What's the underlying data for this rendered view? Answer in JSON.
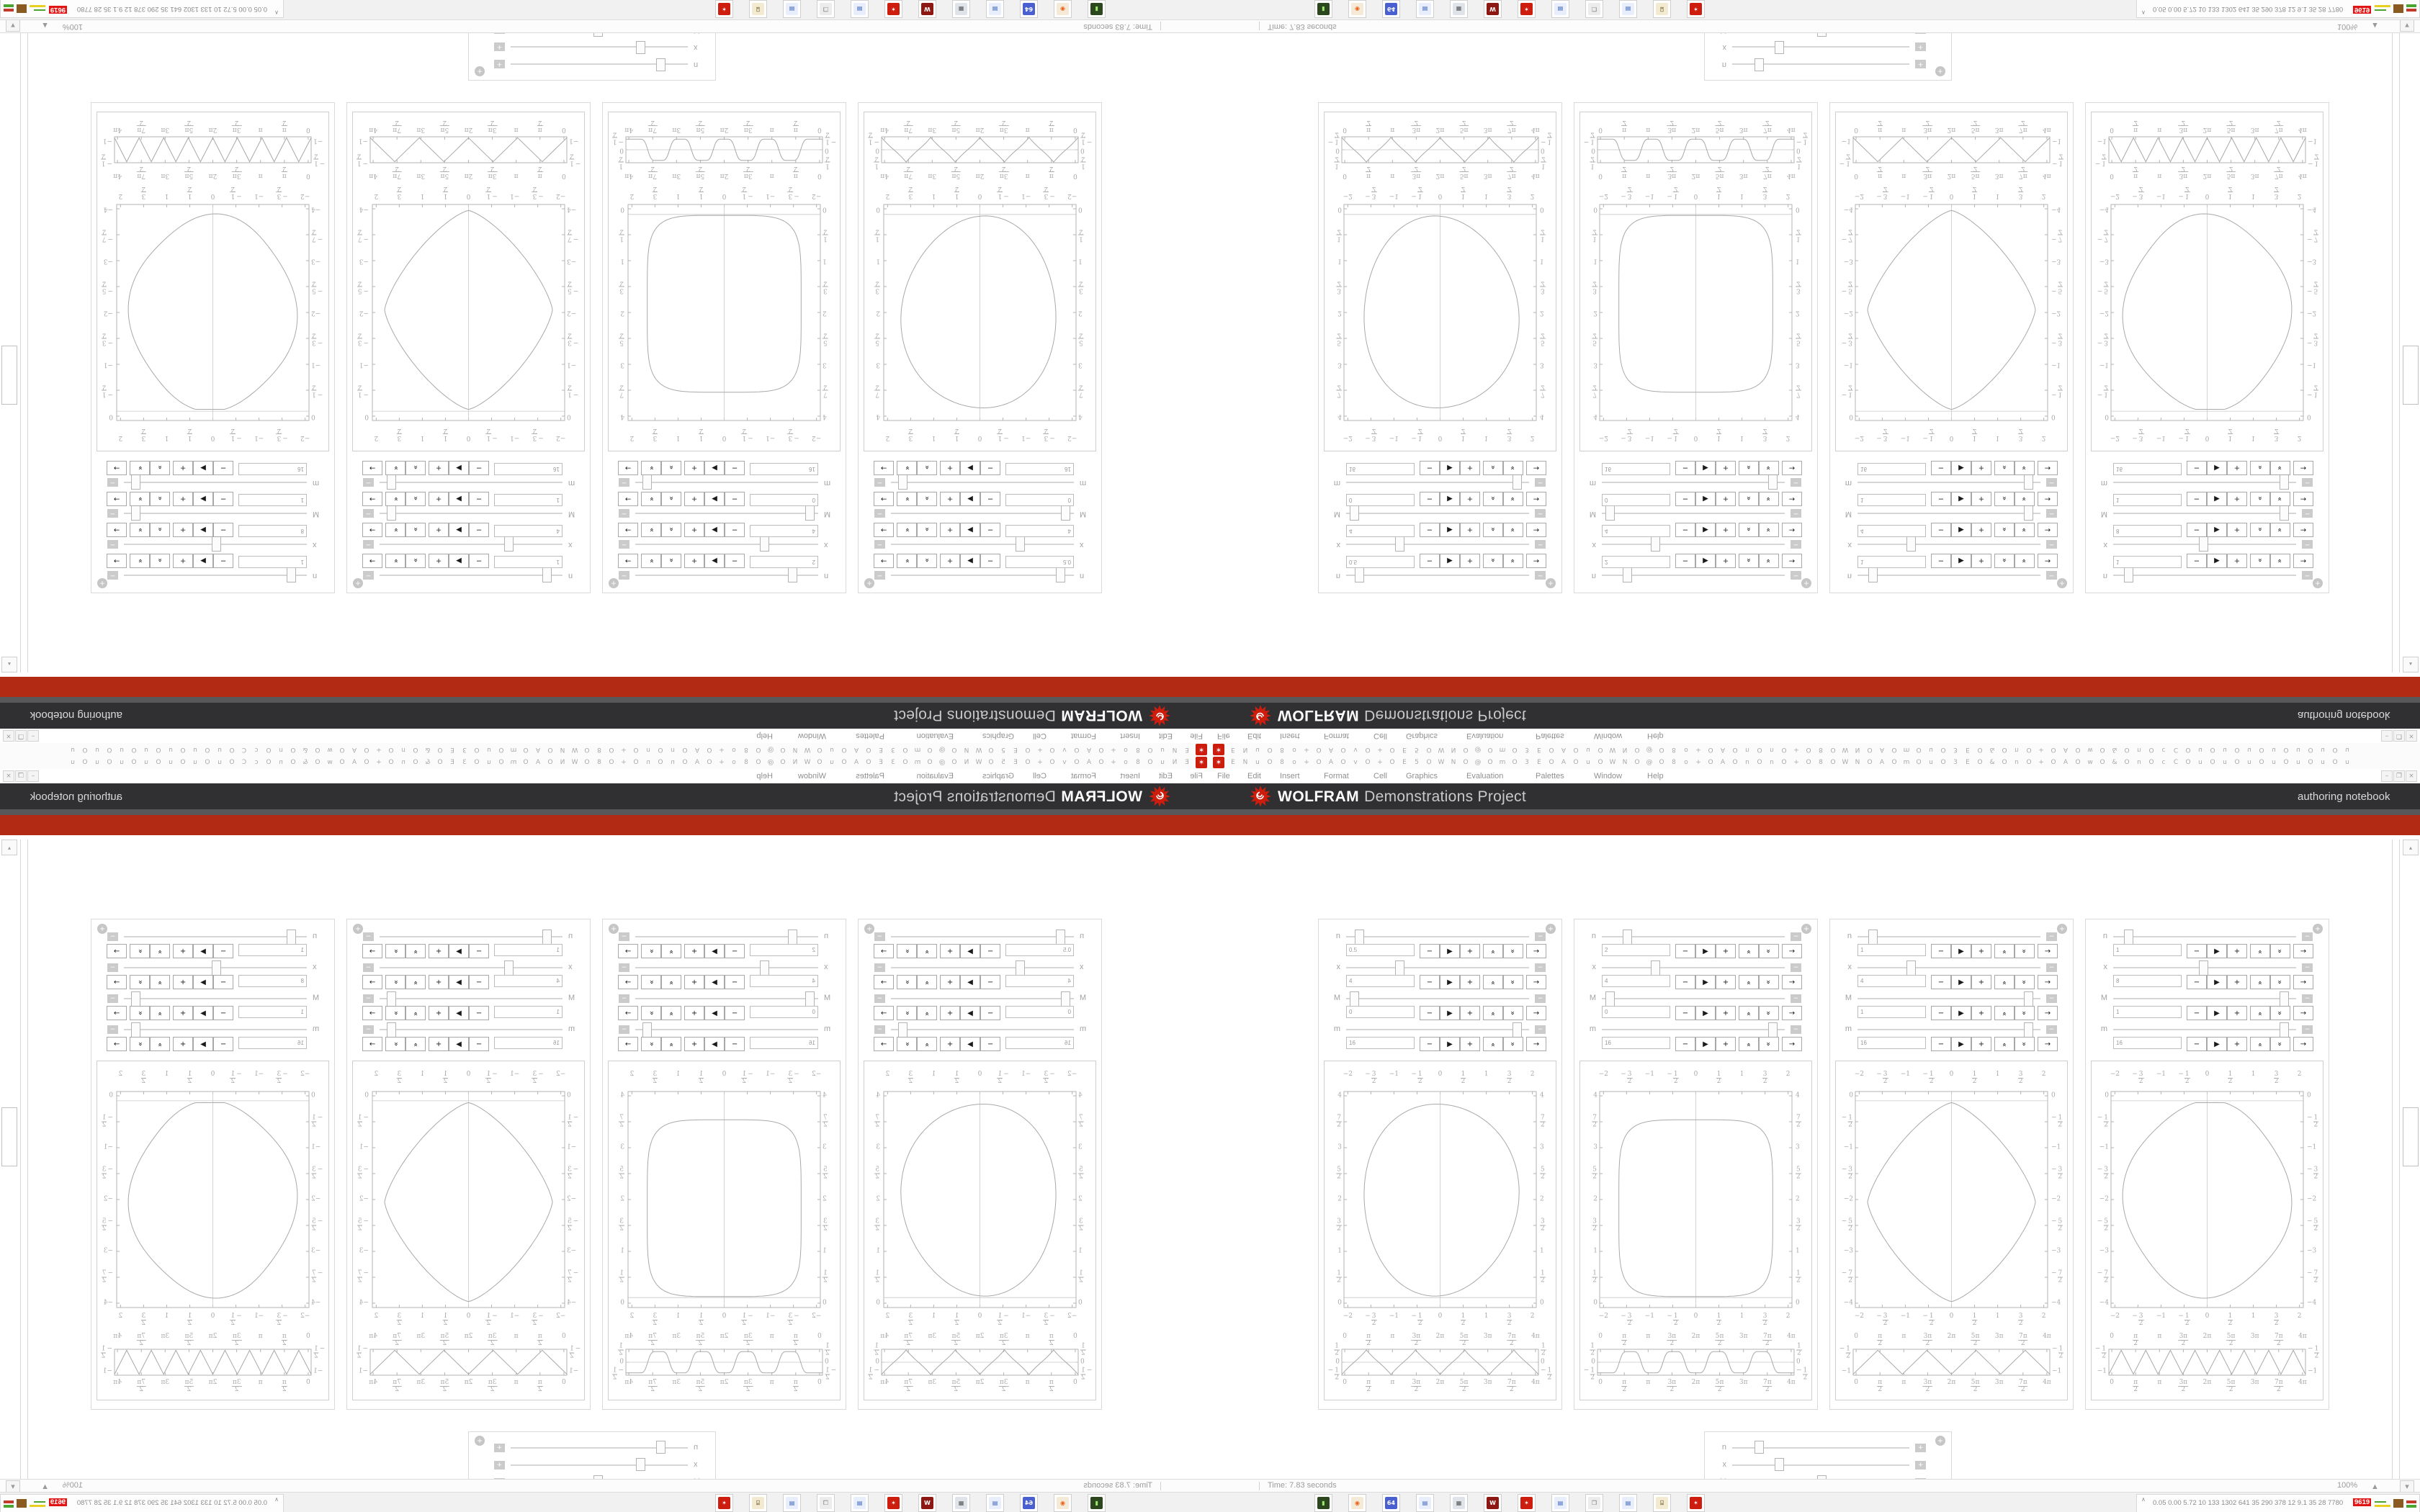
{
  "brand": {
    "wolfram": "WOLFRAM",
    "project": "Demonstrations Project",
    "right_label": "authoring notebook"
  },
  "menu": {
    "items": [
      "File",
      "Edit",
      "Insert",
      "Format",
      "Cell",
      "Graphics",
      "Evaluation",
      "Palettes",
      "Window",
      "Help"
    ],
    "window_buttons": [
      "–",
      "❐",
      "×"
    ]
  },
  "toolbar": {
    "first_icon": "wolfram-spikey-icon",
    "glyphs": "ENuO8o+OAOvO+OE5OWNO@OmO3EOAOuOWNO@O8o+OAOnOnO+O8OWNOAOmOuO3EO&OnO+OAOwO&OnOcCOuOuOuOuOuOuOu"
  },
  "status": {
    "time": "Time: 7.83 seconds",
    "zoom": "100%",
    "zoom_caret": "▲",
    "corner_caret": "▾",
    "scroll_up": "▴"
  },
  "tray": {
    "chevron": "∧",
    "numbers": [
      "0.05",
      "0.00",
      "5.72",
      "10",
      "133",
      "1302",
      "641",
      "35",
      "290",
      "378",
      "12",
      "9.1",
      "35",
      "28",
      "7780"
    ],
    "badge": "9619"
  },
  "taskbar_tiles": [
    {
      "name": "terminal-icon",
      "glyph": "�main",
      "bg": "#2c471e",
      "fg": "#9fe870",
      "text": "▮"
    },
    {
      "name": "firefox-icon",
      "glyph": "browser",
      "bg": "#f5e9d8",
      "fg": "#e8641a",
      "text": "◉"
    },
    {
      "name": "floppy64-icon",
      "glyph": "save64",
      "bg": "#4a5fd0",
      "fg": "#ffffff",
      "text": "64"
    },
    {
      "name": "notepad-icon",
      "glyph": "notes",
      "bg": "#e8eefc",
      "fg": "#3a62b8",
      "text": "▤"
    },
    {
      "name": "calculator-icon",
      "glyph": "calc",
      "bg": "#dfe4ea",
      "fg": "#555555",
      "text": "▦"
    },
    {
      "name": "wolfram-w-icon",
      "glyph": "W-app",
      "bg": "#8c1713",
      "fg": "#ffffff",
      "text": "W"
    },
    {
      "name": "spikey-icon",
      "glyph": "mathematica",
      "bg": "#cc1d0e",
      "fg": "#ffffff",
      "text": "✶"
    },
    {
      "name": "notepad-icon",
      "glyph": "notes",
      "bg": "#e8eefc",
      "fg": "#3a62b8",
      "text": "▤"
    },
    {
      "name": "window-icon",
      "glyph": "window",
      "bg": "#ececec",
      "fg": "#777777",
      "text": "❒"
    },
    {
      "name": "notepad-icon",
      "glyph": "notes",
      "bg": "#e8eefc",
      "fg": "#3a62b8",
      "text": "▤"
    },
    {
      "name": "scroll-icon",
      "glyph": "script",
      "bg": "#f3ead2",
      "fg": "#8a7a4a",
      "text": "⌺"
    },
    {
      "name": "spikey-icon",
      "glyph": "mathematica",
      "bg": "#cc1d0e",
      "fg": "#ffffff",
      "text": "✶"
    }
  ],
  "panels": [
    {
      "controls": [
        {
          "label": "n",
          "value": "0.5",
          "thumb": 0.05
        },
        {
          "label": "x",
          "value": "4",
          "thumb": 0.28
        },
        {
          "label": "M",
          "value": "0",
          "thumb": 0.02
        },
        {
          "label": "m",
          "value": "16",
          "thumb": 0.95
        }
      ],
      "plot": {
        "shape": "blob-up",
        "x_labels": [
          "-2",
          "-3/2",
          "-1",
          "-1/2",
          "0",
          "1/2",
          "1",
          "3/2",
          "2"
        ],
        "y_labels": [
          "4",
          "7/2",
          "3",
          "5/2",
          "2",
          "3/2",
          "1",
          "1/2",
          "0"
        ]
      },
      "strip": {
        "wave": "cusp",
        "x_labels": [
          "0",
          "π/2",
          "π",
          "3π/2",
          "2π",
          "5π/2",
          "3π",
          "7π/2",
          "4π"
        ],
        "y_labels": [
          "1/2",
          "0",
          "-1/2"
        ]
      }
    },
    {
      "controls": [
        {
          "label": "n",
          "value": "2",
          "thumb": 0.12
        },
        {
          "label": "x",
          "value": "4",
          "thumb": 0.28
        },
        {
          "label": "M",
          "value": "0",
          "thumb": 0.02
        },
        {
          "label": "m",
          "value": "16",
          "thumb": 0.95
        }
      ],
      "plot": {
        "shape": "squircle-up",
        "x_labels": [
          "-2",
          "-3/2",
          "-1",
          "-1/2",
          "0",
          "1/2",
          "1",
          "3/2",
          "2"
        ],
        "y_labels": [
          "4",
          "7/2",
          "3",
          "5/2",
          "2",
          "3/2",
          "1",
          "1/2",
          "0"
        ]
      },
      "strip": {
        "wave": "sqwave",
        "x_labels": [
          "0",
          "π/2",
          "π",
          "3π/2",
          "2π",
          "5π/2",
          "3π",
          "7π/2",
          "4π"
        ],
        "y_labels": [
          "1/2",
          "0",
          "-1/2"
        ]
      }
    },
    {
      "controls": [
        {
          "label": "n",
          "value": "1",
          "thumb": 0.06
        },
        {
          "label": "x",
          "value": "4",
          "thumb": 0.28
        },
        {
          "label": "M",
          "value": "1",
          "thumb": 0.95
        },
        {
          "label": "m",
          "value": "16",
          "thumb": 0.95
        }
      ],
      "plot": {
        "shape": "lens-down",
        "x_labels": [
          "-2",
          "-3/2",
          "-1",
          "-1/2",
          "0",
          "1/2",
          "1",
          "3/2",
          "2"
        ],
        "y_labels": [
          "0",
          "-1/2",
          "-1",
          "-3/2",
          "-2",
          "-5/2",
          "-3",
          "-7/2",
          "-4"
        ]
      },
      "strip": {
        "wave": "zig4",
        "x_labels": [
          "0",
          "π/2",
          "π",
          "3π/2",
          "2π",
          "5π/2",
          "3π",
          "7π/2",
          "4π"
        ],
        "y_labels": [
          "-1/2",
          "-1"
        ]
      }
    },
    {
      "controls": [
        {
          "label": "n",
          "value": "1",
          "thumb": 0.06
        },
        {
          "label": "x",
          "value": "8",
          "thumb": 0.49
        },
        {
          "label": "M",
          "value": "1",
          "thumb": 0.95
        },
        {
          "label": "m",
          "value": "16",
          "thumb": 0.95
        }
      ],
      "plot": {
        "shape": "octo-down",
        "x_labels": [
          "-2",
          "-3/2",
          "-1",
          "-1/2",
          "0",
          "1/2",
          "1",
          "3/2",
          "2"
        ],
        "y_labels": [
          "0",
          "-1/2",
          "-1",
          "-3/2",
          "-2",
          "-5/2",
          "-3",
          "-7/2",
          "-4"
        ]
      },
      "strip": {
        "wave": "zig8",
        "x_labels": [
          "0",
          "π/2",
          "π",
          "3π/2",
          "2π",
          "5π/2",
          "3π",
          "7π/2",
          "4π"
        ],
        "y_labels": [
          "-1/2",
          "-1"
        ]
      }
    }
  ],
  "grid_panel": {
    "controls": [
      {
        "label": "n",
        "thumb": 0.13
      },
      {
        "label": "x",
        "thumb": 0.25
      },
      {
        "label": "M",
        "thumb": 0.5
      },
      {
        "label": "m",
        "thumb": 0.97
      }
    ],
    "strip": {
      "wave": "flat-cross",
      "x_labels": [
        "-1/2",
        "0",
        "1/2",
        "1",
        "3/2",
        "2",
        "5/2",
        "3",
        "7/2",
        "4",
        "9/2",
        "5",
        "11/2",
        "6",
        "13/2",
        "7",
        "15/2",
        "8",
        "17/2",
        "9",
        "19/2",
        "10",
        "21/2",
        "11",
        "23/2",
        "12",
        "25/2",
        "13"
      ],
      "y_left": "0",
      "y_right": "0"
    }
  }
}
